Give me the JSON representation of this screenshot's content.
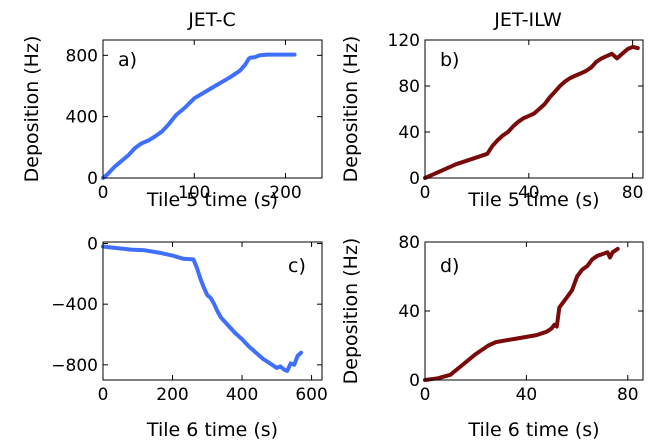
{
  "column_titles": [
    "JET-C",
    "JET-ILW"
  ],
  "chart_data": [
    {
      "type": "line",
      "panel_label": "a)",
      "xlabel": "Tile 5 time (s)",
      "ylabel": "Deposition (Hz)",
      "xlim": [
        0,
        240
      ],
      "ylim": [
        0,
        900
      ],
      "xticks": [
        0,
        100,
        200
      ],
      "yticks": [
        0,
        400,
        800
      ],
      "color": "#3f6fff",
      "series": [
        {
          "x": [
            0,
            5,
            12,
            20,
            28,
            35,
            42,
            50,
            58,
            65,
            72,
            80,
            90,
            100,
            110,
            120,
            130,
            140,
            150,
            156,
            160,
            162,
            166,
            172,
            180,
            190,
            200,
            210
          ],
          "y": [
            0,
            25,
            70,
            110,
            150,
            195,
            225,
            245,
            275,
            305,
            350,
            410,
            460,
            520,
            555,
            590,
            625,
            660,
            700,
            740,
            780,
            785,
            787,
            800,
            805,
            805,
            805,
            805
          ]
        }
      ]
    },
    {
      "type": "line",
      "panel_label": "b)",
      "xlabel": "Tile 5 time (s)",
      "ylabel": "Deposition (Hz)",
      "xlim": [
        0,
        84
      ],
      "ylim": [
        0,
        120
      ],
      "xticks": [
        0,
        40,
        80
      ],
      "yticks": [
        0,
        40,
        80,
        120
      ],
      "color": "#7a0a0a",
      "series": [
        {
          "x": [
            0,
            3,
            8,
            12,
            16,
            20,
            24,
            26,
            28,
            30,
            32,
            34,
            36,
            38,
            40,
            42,
            44,
            46,
            48,
            50,
            52,
            54,
            56,
            58,
            60,
            62,
            64,
            66,
            68,
            70,
            72,
            74,
            76,
            78,
            80,
            82
          ],
          "y": [
            0,
            3,
            8,
            12,
            15,
            18,
            21,
            28,
            33,
            37,
            40,
            45,
            49,
            52,
            54,
            56,
            60,
            64,
            70,
            75,
            80,
            84,
            87,
            89,
            91,
            93,
            96,
            101,
            104,
            106,
            108,
            104,
            108,
            112,
            114,
            113
          ]
        }
      ]
    },
    {
      "type": "line",
      "panel_label": "c)",
      "xlabel": "Tile 6 time (s)",
      "ylabel": "",
      "xlim": [
        0,
        630
      ],
      "ylim": [
        -900,
        10
      ],
      "xticks": [
        0,
        200,
        400,
        600
      ],
      "yticks": [
        0,
        -400,
        -800
      ],
      "color": "#3f6fff",
      "series": [
        {
          "x": [
            0,
            40,
            80,
            120,
            160,
            200,
            230,
            260,
            270,
            280,
            290,
            300,
            310,
            320,
            330,
            340,
            360,
            380,
            400,
            420,
            440,
            460,
            480,
            500,
            510,
            520,
            530,
            540,
            550,
            560,
            570
          ],
          "y": [
            -20,
            -30,
            -40,
            -45,
            -60,
            -80,
            -100,
            -105,
            -160,
            -230,
            -290,
            -340,
            -360,
            -400,
            -450,
            -490,
            -540,
            -590,
            -630,
            -680,
            -720,
            -760,
            -790,
            -820,
            -810,
            -830,
            -840,
            -790,
            -800,
            -740,
            -720
          ]
        }
      ]
    },
    {
      "type": "line",
      "panel_label": "d)",
      "xlabel": "Tile 6 time (s)",
      "ylabel": "Deposition (Hz)",
      "xlim": [
        0,
        86
      ],
      "ylim": [
        0,
        80
      ],
      "xticks": [
        0,
        40,
        80
      ],
      "yticks": [
        0,
        40,
        80
      ],
      "color": "#7a0a0a",
      "series": [
        {
          "x": [
            0,
            5,
            10,
            15,
            20,
            25,
            28,
            32,
            36,
            40,
            44,
            48,
            50,
            51,
            52,
            53,
            56,
            58,
            60,
            62,
            64,
            66,
            68,
            70,
            72,
            73,
            74,
            76
          ],
          "y": [
            0,
            1,
            3,
            9,
            15,
            20,
            22,
            23,
            24,
            25,
            26,
            28,
            30,
            32,
            31,
            42,
            48,
            52,
            60,
            64,
            66,
            70,
            72,
            73,
            74,
            71,
            74,
            76
          ]
        }
      ]
    }
  ]
}
